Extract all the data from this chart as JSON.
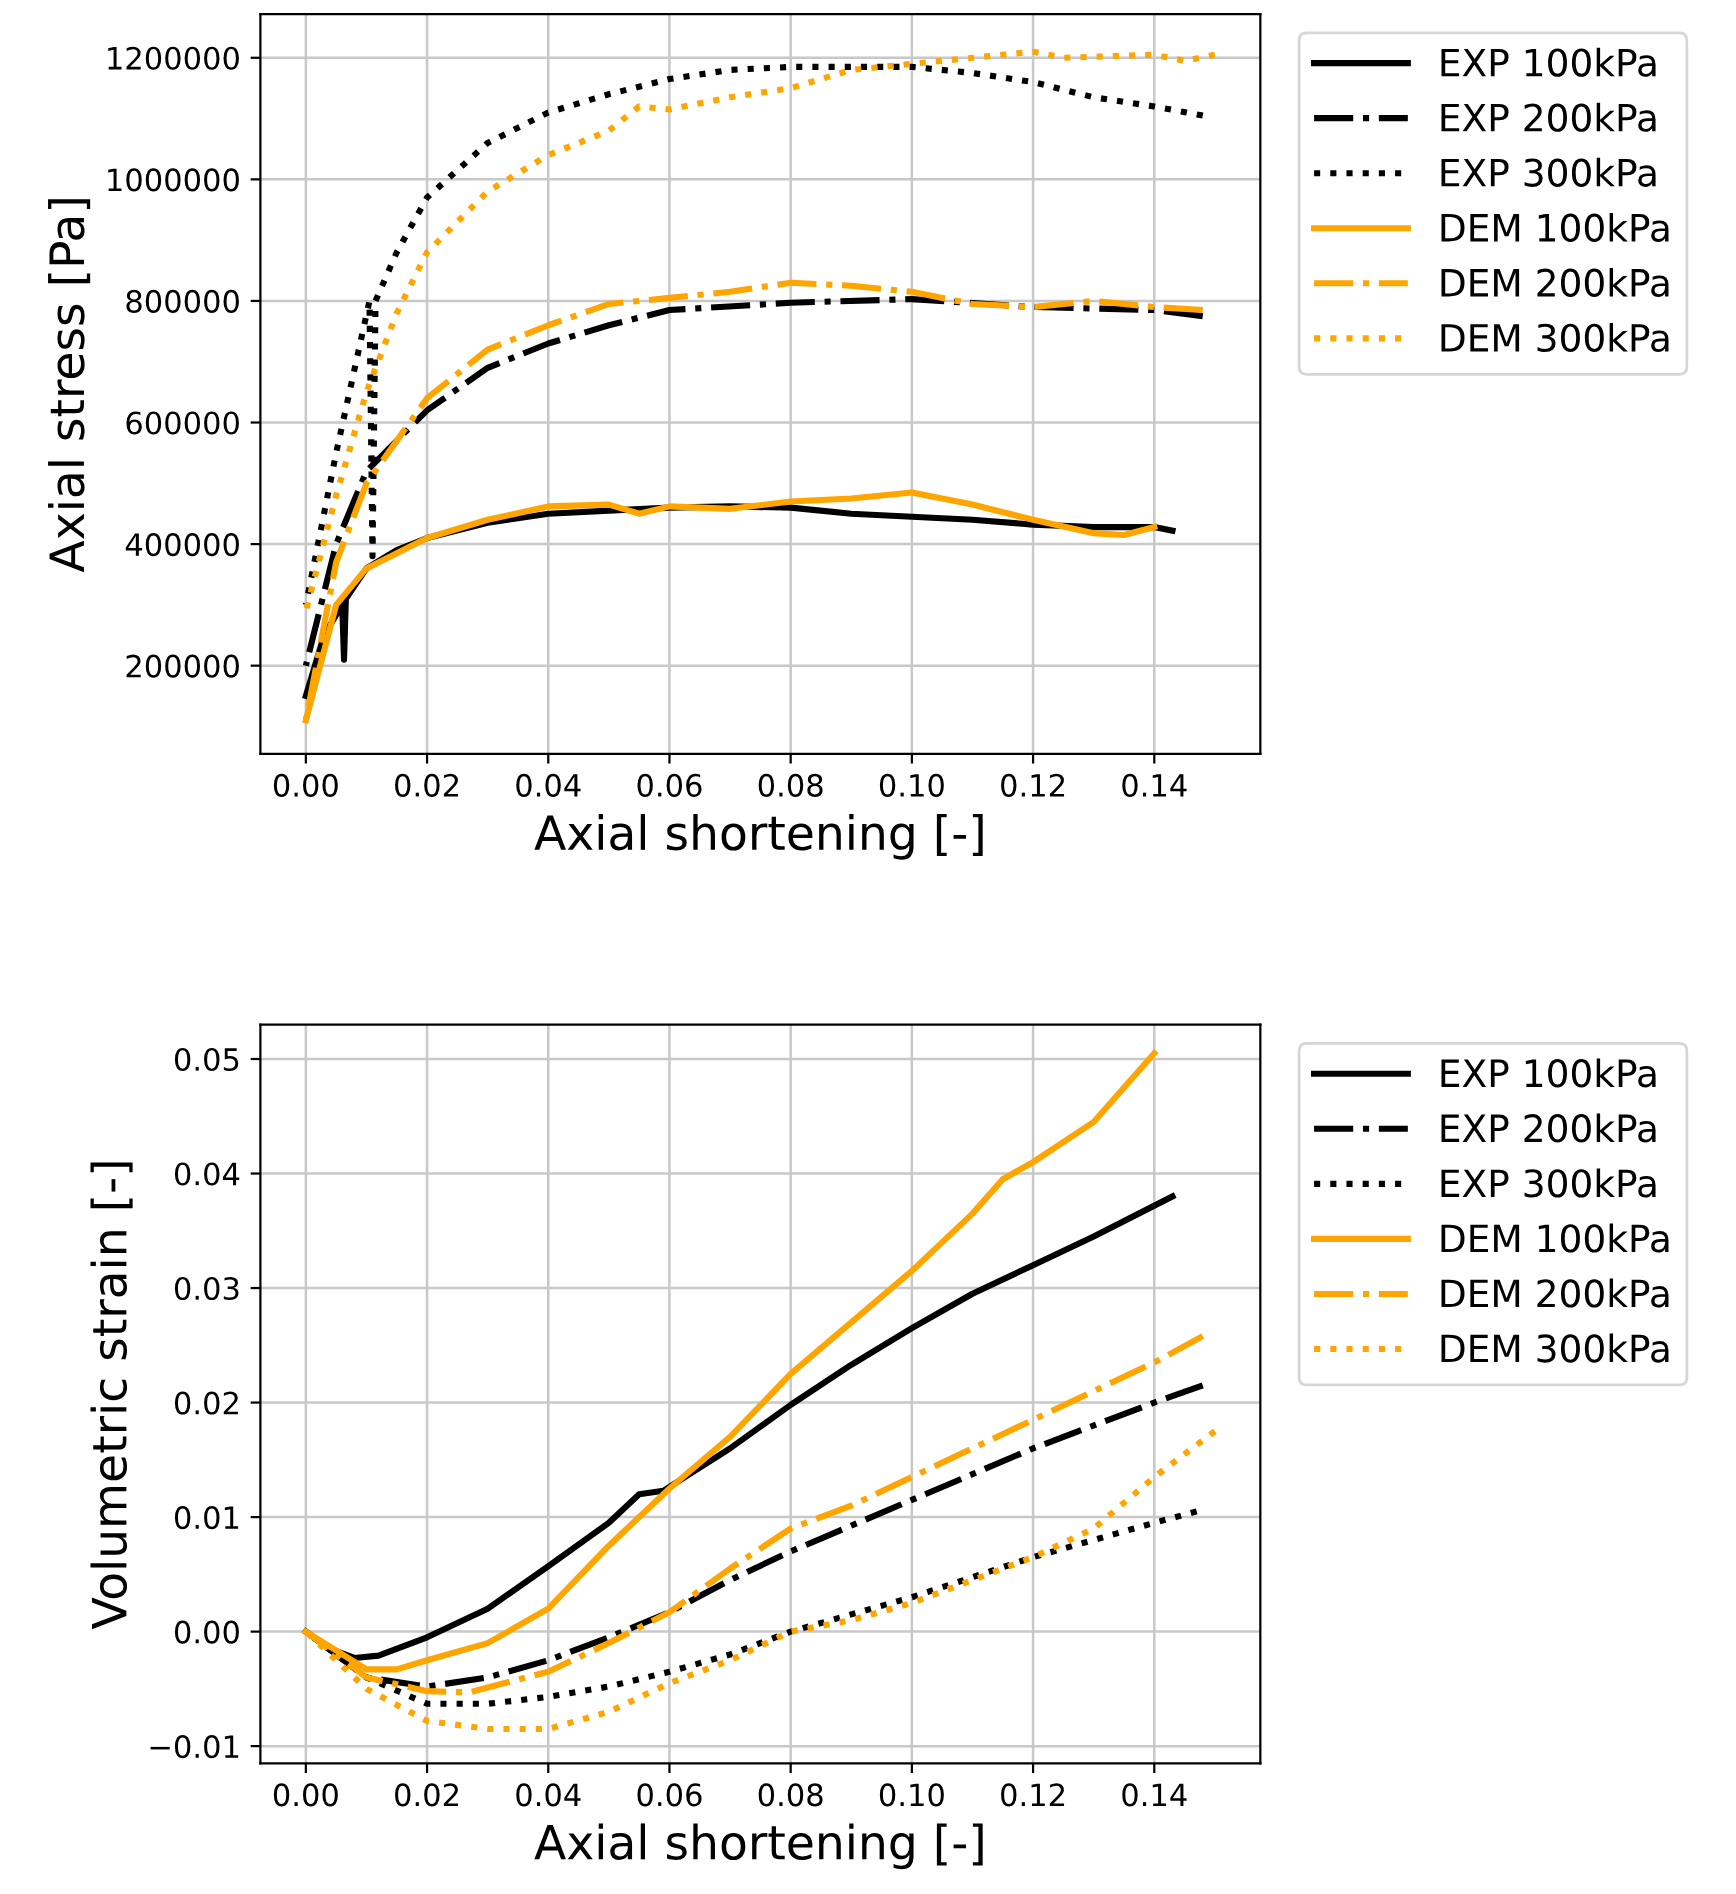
{
  "chart_data": [
    {
      "type": "line",
      "xlabel": "Axial shortening [-]",
      "ylabel": "Axial stress [Pa]",
      "xlim": [
        -0.0075,
        0.1575
      ],
      "ylim": [
        55000,
        1272000
      ],
      "xticks": [
        {
          "value": 0,
          "label": "0.00"
        },
        {
          "value": 0.02,
          "label": "0.02"
        },
        {
          "value": 0.04,
          "label": "0.04"
        },
        {
          "value": 0.06,
          "label": "0.06"
        },
        {
          "value": 0.08,
          "label": "0.08"
        },
        {
          "value": 0.1,
          "label": "0.10"
        },
        {
          "value": 0.12,
          "label": "0.12"
        },
        {
          "value": 0.14,
          "label": "0.14"
        }
      ],
      "yticks": [
        200000,
        400000,
        600000,
        800000,
        1000000,
        1200000
      ],
      "grid": true,
      "legend": "right",
      "series": [
        {
          "name": "EXP 100kPa",
          "color": "#000000",
          "line_style": "solid",
          "x": [
            0,
            0.003,
            0.006,
            0.0063,
            0.0066,
            0.01,
            0.015,
            0.02,
            0.03,
            0.04,
            0.05,
            0.06,
            0.07,
            0.08,
            0.09,
            0.1,
            0.11,
            0.12,
            0.13,
            0.14,
            0.143
          ],
          "values": [
            150000,
            250000,
            300000,
            210000,
            310000,
            360000,
            390000,
            410000,
            435000,
            450000,
            455000,
            460000,
            462000,
            460000,
            450000,
            445000,
            440000,
            432000,
            428000,
            428000,
            422000
          ]
        },
        {
          "name": "EXP 200kPa",
          "color": "#000000",
          "line_style": "dashdot",
          "x": [
            0,
            0.005,
            0.01,
            0.02,
            0.03,
            0.04,
            0.05,
            0.06,
            0.08,
            0.1,
            0.12,
            0.14,
            0.148
          ],
          "values": [
            200000,
            400000,
            520000,
            620000,
            690000,
            730000,
            760000,
            785000,
            797000,
            803000,
            790000,
            785000,
            775000
          ]
        },
        {
          "name": "EXP 300kPa",
          "color": "#000000",
          "line_style": "dotted",
          "x": [
            0,
            0.005,
            0.0105,
            0.011,
            0.0115,
            0.015,
            0.02,
            0.03,
            0.04,
            0.05,
            0.06,
            0.07,
            0.08,
            0.09,
            0.1,
            0.11,
            0.12,
            0.13,
            0.14,
            0.148
          ],
          "values": [
            300000,
            550000,
            800000,
            380000,
            800000,
            880000,
            970000,
            1060000,
            1110000,
            1140000,
            1165000,
            1180000,
            1185000,
            1185000,
            1185000,
            1175000,
            1160000,
            1135000,
            1120000,
            1105000
          ]
        },
        {
          "name": "DEM 100kPa",
          "color": "#ffa500",
          "line_style": "solid",
          "x": [
            0,
            0.005,
            0.01,
            0.02,
            0.03,
            0.04,
            0.05,
            0.055,
            0.06,
            0.07,
            0.08,
            0.09,
            0.1,
            0.11,
            0.12,
            0.13,
            0.135,
            0.14
          ],
          "values": [
            110000,
            300000,
            360000,
            410000,
            440000,
            462000,
            465000,
            450000,
            462000,
            458000,
            470000,
            475000,
            485000,
            465000,
            440000,
            418000,
            415000,
            428000
          ]
        },
        {
          "name": "DEM 200kPa",
          "color": "#ffa500",
          "line_style": "dashdot",
          "x": [
            0,
            0.005,
            0.01,
            0.02,
            0.03,
            0.04,
            0.05,
            0.06,
            0.07,
            0.08,
            0.09,
            0.1,
            0.11,
            0.12,
            0.13,
            0.14,
            0.148
          ],
          "values": [
            110000,
            370000,
            500000,
            640000,
            720000,
            760000,
            795000,
            805000,
            815000,
            830000,
            825000,
            815000,
            795000,
            790000,
            800000,
            790000,
            785000
          ]
        },
        {
          "name": "DEM 300kPa",
          "color": "#ffa500",
          "line_style": "dotted",
          "x": [
            0,
            0.005,
            0.01,
            0.015,
            0.02,
            0.03,
            0.04,
            0.05,
            0.055,
            0.06,
            0.07,
            0.08,
            0.09,
            0.1,
            0.11,
            0.12,
            0.125,
            0.14,
            0.145,
            0.15
          ],
          "values": [
            290000,
            480000,
            650000,
            780000,
            880000,
            980000,
            1040000,
            1080000,
            1120000,
            1115000,
            1135000,
            1150000,
            1180000,
            1190000,
            1200000,
            1210000,
            1200000,
            1205000,
            1195000,
            1205000
          ]
        }
      ]
    },
    {
      "type": "line",
      "xlabel": "Axial shortening [-]",
      "ylabel": "Volumetric strain [-]",
      "xlim": [
        -0.0075,
        0.1575
      ],
      "ylim": [
        -0.0115,
        0.053
      ],
      "xticks": [
        {
          "value": 0,
          "label": "0.00"
        },
        {
          "value": 0.02,
          "label": "0.02"
        },
        {
          "value": 0.04,
          "label": "0.04"
        },
        {
          "value": 0.06,
          "label": "0.06"
        },
        {
          "value": 0.08,
          "label": "0.08"
        },
        {
          "value": 0.1,
          "label": "0.10"
        },
        {
          "value": 0.12,
          "label": "0.12"
        },
        {
          "value": 0.14,
          "label": "0.14"
        }
      ],
      "yticks": [
        {
          "value": -0.01,
          "label": "−0.01"
        },
        {
          "value": 0,
          "label": "0.00"
        },
        0.01,
        0.02,
        0.03,
        0.04,
        0.05
      ],
      "grid": true,
      "legend": "right",
      "series": [
        {
          "name": "EXP 100kPa",
          "color": "#000000",
          "line_style": "solid",
          "x": [
            0,
            0.004,
            0.008,
            0.012,
            0.02,
            0.03,
            0.04,
            0.05,
            0.055,
            0.059,
            0.07,
            0.08,
            0.09,
            0.1,
            0.11,
            0.12,
            0.13,
            0.143
          ],
          "values": [
            0,
            -0.0015,
            -0.0023,
            -0.0021,
            -0.0005,
            0.002,
            0.0057,
            0.0095,
            0.012,
            0.0123,
            0.016,
            0.0198,
            0.0233,
            0.0265,
            0.0295,
            0.032,
            0.0345,
            0.038
          ]
        },
        {
          "name": "EXP 200kPa",
          "color": "#000000",
          "line_style": "dashdot",
          "x": [
            0,
            0.01,
            0.02,
            0.03,
            0.04,
            0.05,
            0.06,
            0.07,
            0.08,
            0.1,
            0.12,
            0.14,
            0.148
          ],
          "values": [
            0,
            -0.004,
            -0.0048,
            -0.004,
            -0.0025,
            -0.0005,
            0.0017,
            0.0045,
            0.007,
            0.0115,
            0.016,
            0.02,
            0.0215
          ]
        },
        {
          "name": "EXP 300kPa",
          "color": "#000000",
          "line_style": "dotted",
          "x": [
            0,
            0.01,
            0.02,
            0.03,
            0.04,
            0.05,
            0.06,
            0.07,
            0.08,
            0.1,
            0.12,
            0.14,
            0.147
          ],
          "values": [
            0,
            -0.004,
            -0.0063,
            -0.0063,
            -0.0057,
            -0.0048,
            -0.0035,
            -0.002,
            0,
            0.003,
            0.0065,
            0.0095,
            0.0105
          ]
        },
        {
          "name": "DEM 100kPa",
          "color": "#ffa500",
          "line_style": "solid",
          "x": [
            0,
            0.01,
            0.015,
            0.02,
            0.03,
            0.04,
            0.05,
            0.06,
            0.07,
            0.08,
            0.09,
            0.1,
            0.11,
            0.115,
            0.12,
            0.13,
            0.14
          ],
          "values": [
            0,
            -0.0033,
            -0.0033,
            -0.0025,
            -0.001,
            0.002,
            0.0075,
            0.0125,
            0.017,
            0.0225,
            0.027,
            0.0315,
            0.0365,
            0.0395,
            0.041,
            0.0445,
            0.0505
          ]
        },
        {
          "name": "DEM 200kPa",
          "color": "#ffa500",
          "line_style": "dashdot",
          "x": [
            0,
            0.01,
            0.02,
            0.027,
            0.04,
            0.05,
            0.06,
            0.07,
            0.08,
            0.09,
            0.1,
            0.11,
            0.12,
            0.13,
            0.14,
            0.148
          ],
          "values": [
            0,
            -0.004,
            -0.0052,
            -0.0053,
            -0.0035,
            -0.001,
            0.0017,
            0.0055,
            0.009,
            0.011,
            0.0135,
            0.016,
            0.0185,
            0.021,
            0.0235,
            0.0258
          ]
        },
        {
          "name": "DEM 300kPa",
          "color": "#ffa500",
          "line_style": "dotted",
          "x": [
            0,
            0.01,
            0.02,
            0.03,
            0.04,
            0.05,
            0.06,
            0.07,
            0.08,
            0.09,
            0.1,
            0.11,
            0.12,
            0.13,
            0.14,
            0.15
          ],
          "values": [
            0,
            -0.005,
            -0.0078,
            -0.0085,
            -0.0085,
            -0.007,
            -0.0045,
            -0.0025,
            0,
            0.001,
            0.0025,
            0.0045,
            0.0065,
            0.009,
            0.0135,
            0.0175
          ]
        }
      ]
    }
  ]
}
